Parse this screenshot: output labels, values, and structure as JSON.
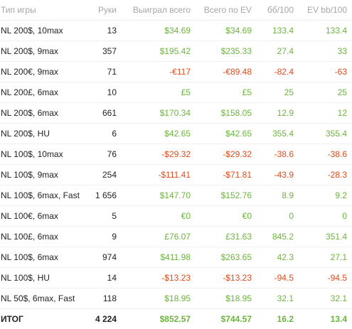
{
  "colors": {
    "header_text": "#a6a6a6",
    "positive": "#6db33f",
    "negative": "#e04a1b",
    "text": "#222222"
  },
  "table": {
    "headers": {
      "type": "Тип игры",
      "hands": "Руки",
      "won": "Выиграл всего",
      "ev_total": "Всего по EV",
      "bb100": "бб/100",
      "ev_bb100": "EV bb/100"
    },
    "rows": [
      {
        "type": "NL 200$, 10max",
        "hands": "13",
        "won": "$34.69",
        "ev_total": "$34.69",
        "bb100": "133.4",
        "ev_bb100": "133.4"
      },
      {
        "type": "NL 200$, 9max",
        "hands": "357",
        "won": "$195.42",
        "ev_total": "$235.33",
        "bb100": "27.4",
        "ev_bb100": "33"
      },
      {
        "type": "NL 200€, 9max",
        "hands": "71",
        "won": "-€117",
        "ev_total": "-€89.48",
        "bb100": "-82.4",
        "ev_bb100": "-63"
      },
      {
        "type": "NL 200£, 6max",
        "hands": "10",
        "won": "£5",
        "ev_total": "£5",
        "bb100": "25",
        "ev_bb100": "25"
      },
      {
        "type": "NL 200$, 6max",
        "hands": "661",
        "won": "$170.34",
        "ev_total": "$158.05",
        "bb100": "12.9",
        "ev_bb100": "12"
      },
      {
        "type": "NL 200$, HU",
        "hands": "6",
        "won": "$42.65",
        "ev_total": "$42.65",
        "bb100": "355.4",
        "ev_bb100": "355.4"
      },
      {
        "type": "NL 100$, 10max",
        "hands": "76",
        "won": "-$29.32",
        "ev_total": "-$29.32",
        "bb100": "-38.6",
        "ev_bb100": "-38.6"
      },
      {
        "type": "NL 100$, 9max",
        "hands": "254",
        "won": "-$111.41",
        "ev_total": "-$71.81",
        "bb100": "-43.9",
        "ev_bb100": "-28.3"
      },
      {
        "type": "NL 100$, 6max, Fast",
        "hands": "1 656",
        "won": "$147.70",
        "ev_total": "$152.76",
        "bb100": "8.9",
        "ev_bb100": "9.2"
      },
      {
        "type": "NL 100€, 6max",
        "hands": "5",
        "won": "€0",
        "ev_total": "€0",
        "bb100": "0",
        "ev_bb100": "0"
      },
      {
        "type": "NL 100£, 6max",
        "hands": "9",
        "won": "£76.07",
        "ev_total": "£31.63",
        "bb100": "845.2",
        "ev_bb100": "351.4"
      },
      {
        "type": "NL 100$, 6max",
        "hands": "974",
        "won": "$411.98",
        "ev_total": "$263.65",
        "bb100": "42.3",
        "ev_bb100": "27.1"
      },
      {
        "type": "NL 100$, HU",
        "hands": "14",
        "won": "-$13.23",
        "ev_total": "-$13.23",
        "bb100": "-94.5",
        "ev_bb100": "-94.5"
      },
      {
        "type": "NL 50$, 6max, Fast",
        "hands": "118",
        "won": "$18.95",
        "ev_total": "$18.95",
        "bb100": "32.1",
        "ev_bb100": "32.1"
      }
    ],
    "total": {
      "type": "ИТОГ",
      "hands": "4 224",
      "won": "$852.57",
      "ev_total": "$744.57",
      "bb100": "16.2",
      "ev_bb100": "13.4"
    }
  }
}
